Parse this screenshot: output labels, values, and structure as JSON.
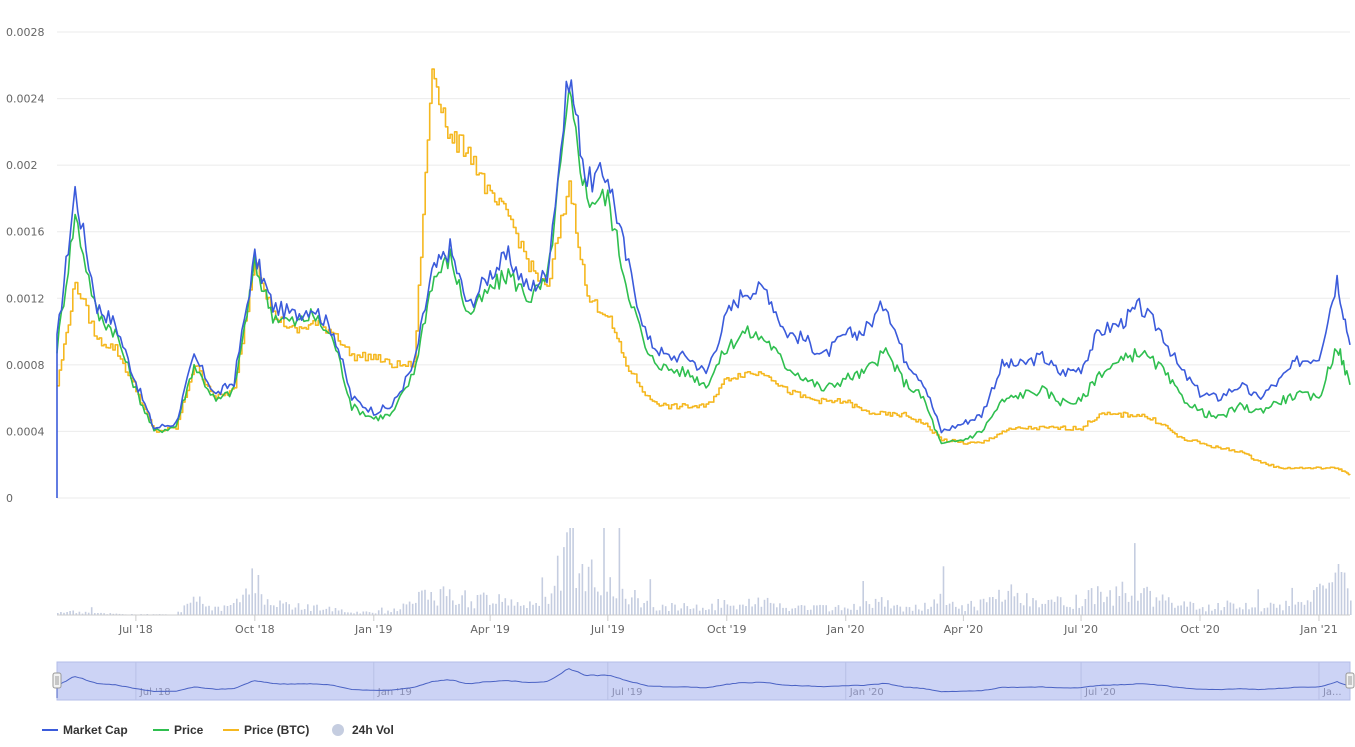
{
  "chart_data": {
    "type": "line",
    "title": "",
    "y_ticks": [
      "0",
      "0.0004",
      "0.0008",
      "0.0012",
      "0.0016",
      "0.002",
      "0.0024",
      "0.0028"
    ],
    "ylim": [
      0,
      0.0028
    ],
    "x_ticks": [
      "Jul '18",
      "Oct '18",
      "Jan '19",
      "Apr '19",
      "Jul '19",
      "Oct '19",
      "Jan '20",
      "Apr '20",
      "Jul '20",
      "Oct '20",
      "Jan '21"
    ],
    "navigator_ticks": [
      "Jul '18",
      "Jan '19",
      "Jul '19",
      "Jan '20",
      "Jul '20",
      "Ja..."
    ],
    "grid": true,
    "legend_position": "bottom-left",
    "legend": [
      {
        "label": "Market Cap",
        "color": "#3b5bdb"
      },
      {
        "label": "Price",
        "color": "#2fbf4f"
      },
      {
        "label": "Price (BTC)",
        "color": "#f5b820"
      },
      {
        "label": "24h Vol",
        "color": "#c5cde0"
      }
    ],
    "x_dates": [
      "2018-05-01",
      "2018-05-15",
      "2018-06-01",
      "2018-06-15",
      "2018-07-01",
      "2018-07-15",
      "2018-08-01",
      "2018-08-15",
      "2018-09-01",
      "2018-09-15",
      "2018-10-01",
      "2018-10-15",
      "2018-11-01",
      "2018-11-15",
      "2018-12-01",
      "2018-12-15",
      "2019-01-01",
      "2019-01-15",
      "2019-02-01",
      "2019-02-15",
      "2019-03-01",
      "2019-03-15",
      "2019-04-01",
      "2019-04-15",
      "2019-05-01",
      "2019-05-15",
      "2019-06-01",
      "2019-06-15",
      "2019-07-01",
      "2019-07-15",
      "2019-08-01",
      "2019-08-15",
      "2019-09-01",
      "2019-09-15",
      "2019-10-01",
      "2019-10-15",
      "2019-11-01",
      "2019-11-15",
      "2019-12-01",
      "2019-12-15",
      "2020-01-01",
      "2020-01-15",
      "2020-02-01",
      "2020-02-15",
      "2020-03-01",
      "2020-03-15",
      "2020-04-01",
      "2020-04-15",
      "2020-05-01",
      "2020-05-15",
      "2020-06-01",
      "2020-06-15",
      "2020-07-01",
      "2020-07-15",
      "2020-08-01",
      "2020-08-15",
      "2020-09-01",
      "2020-09-15",
      "2020-10-01",
      "2020-10-15",
      "2020-11-01",
      "2020-11-15",
      "2020-12-01",
      "2020-12-15",
      "2021-01-01",
      "2021-01-15",
      "2021-01-25"
    ],
    "series": [
      {
        "name": "Market Cap",
        "color": "#3b5bdb",
        "values": [
          0.00095,
          0.00185,
          0.00115,
          0.00105,
          0.0007,
          0.00042,
          0.00045,
          0.00085,
          0.00062,
          0.0007,
          0.00145,
          0.00115,
          0.0011,
          0.00115,
          0.001,
          0.0006,
          0.00052,
          0.00055,
          0.0008,
          0.00135,
          0.0015,
          0.00115,
          0.00135,
          0.00145,
          0.00125,
          0.00135,
          0.00255,
          0.0019,
          0.00195,
          0.00145,
          0.00095,
          0.00085,
          0.00085,
          0.00075,
          0.0011,
          0.00125,
          0.00125,
          0.001,
          0.00095,
          0.00085,
          0.00098,
          0.001,
          0.00118,
          0.00085,
          0.0007,
          0.0004,
          0.00045,
          0.0005,
          0.0008,
          0.0008,
          0.00085,
          0.00075,
          0.00078,
          0.001,
          0.00105,
          0.00115,
          0.001,
          0.00078,
          0.00063,
          0.0006,
          0.00068,
          0.0006,
          0.0007,
          0.00082,
          0.00085,
          0.00132,
          0.00092
        ]
      },
      {
        "name": "Price",
        "color": "#2fbf4f",
        "values": [
          0.0009,
          0.0017,
          0.0011,
          0.001,
          0.00065,
          0.0004,
          0.00043,
          0.0008,
          0.00058,
          0.00065,
          0.0014,
          0.0011,
          0.00105,
          0.0011,
          0.00095,
          0.00055,
          0.00048,
          0.0005,
          0.00075,
          0.0013,
          0.00145,
          0.0011,
          0.00125,
          0.00135,
          0.0012,
          0.0013,
          0.0024,
          0.0018,
          0.0018,
          0.0013,
          0.00085,
          0.00078,
          0.00075,
          0.00068,
          0.0009,
          0.001,
          0.00095,
          0.0008,
          0.00072,
          0.00065,
          0.00072,
          0.00075,
          0.00088,
          0.0007,
          0.0006,
          0.00032,
          0.00035,
          0.0004,
          0.00058,
          0.00062,
          0.00065,
          0.00058,
          0.00058,
          0.00075,
          0.00082,
          0.00088,
          0.00078,
          0.00062,
          0.00052,
          0.00048,
          0.00055,
          0.00052,
          0.00058,
          0.00062,
          0.0006,
          0.00092,
          0.00068
        ]
      },
      {
        "name": "Price (BTC)",
        "color": "#f5b820",
        "values": [
          0.00068,
          0.0013,
          0.00095,
          0.0009,
          0.00065,
          0.0004,
          0.00042,
          0.0008,
          0.0006,
          0.00065,
          0.00145,
          0.0011,
          0.001,
          0.00105,
          0.001,
          0.00085,
          0.00085,
          0.0008,
          0.0008,
          0.0026,
          0.00215,
          0.0021,
          0.0018,
          0.0017,
          0.0014,
          0.00125,
          0.0019,
          0.0012,
          0.0011,
          0.0008,
          0.0006,
          0.00055,
          0.00055,
          0.00055,
          0.00072,
          0.00075,
          0.00075,
          0.00065,
          0.0006,
          0.00058,
          0.00058,
          0.00052,
          0.0005,
          0.0005,
          0.00045,
          0.00035,
          0.00033,
          0.00033,
          0.0004,
          0.00042,
          0.00042,
          0.00042,
          0.00042,
          0.0005,
          0.0005,
          0.0005,
          0.00045,
          0.00036,
          0.00033,
          0.0003,
          0.00028,
          0.00022,
          0.00018,
          0.00018,
          0.00018,
          0.00018,
          0.00014
        ]
      }
    ],
    "volume_relative": [
      0.05,
      0.04,
      0.03,
      0.02,
      0.01,
      0.01,
      0.01,
      0.2,
      0.1,
      0.12,
      0.5,
      0.15,
      0.12,
      0.1,
      0.08,
      0.05,
      0.04,
      0.05,
      0.15,
      0.3,
      0.25,
      0.2,
      0.22,
      0.2,
      0.15,
      0.2,
      0.9,
      0.6,
      0.5,
      0.3,
      0.15,
      0.12,
      0.12,
      0.1,
      0.2,
      0.18,
      0.18,
      0.12,
      0.1,
      0.1,
      0.1,
      0.12,
      0.2,
      0.1,
      0.1,
      0.2,
      0.1,
      0.15,
      0.25,
      0.3,
      0.2,
      0.2,
      0.2,
      0.3,
      0.3,
      0.35,
      0.25,
      0.15,
      0.12,
      0.1,
      0.15,
      0.1,
      0.12,
      0.15,
      0.2,
      0.7,
      0.3
    ]
  }
}
